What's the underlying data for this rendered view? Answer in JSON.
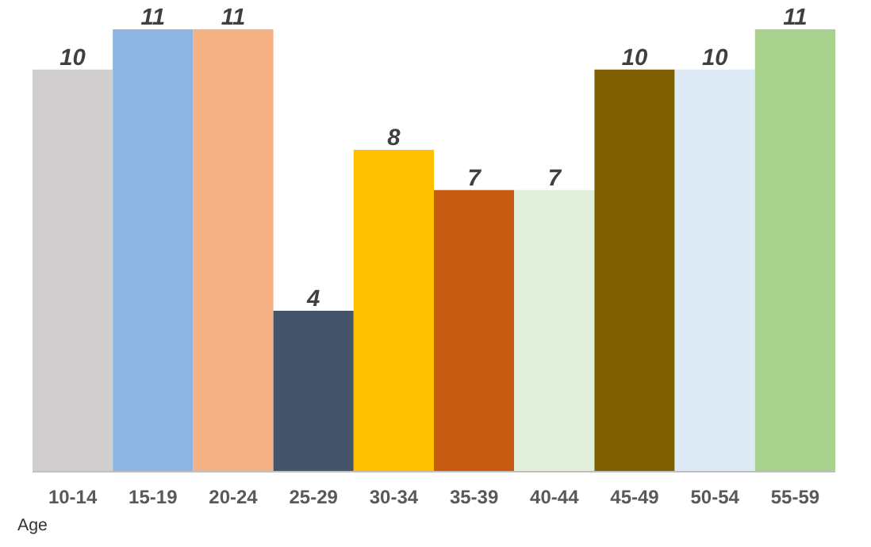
{
  "chart_data": {
    "type": "bar",
    "categories": [
      "10-14",
      "15-19",
      "20-24",
      "25-29",
      "30-34",
      "35-39",
      "40-44",
      "45-49",
      "50-54",
      "55-59"
    ],
    "values": [
      10,
      11,
      11,
      4,
      8,
      7,
      7,
      10,
      10,
      11
    ],
    "colors": [
      "#d0cece",
      "#8db4e2",
      "#f4b183",
      "#44546a",
      "#ffc000",
      "#c55a11",
      "#e2efda",
      "#7f6000",
      "#deebf7",
      "#a9d18e"
    ],
    "tick_labels": "x",
    "data_labels": true,
    "xlabel": "Age"
  }
}
